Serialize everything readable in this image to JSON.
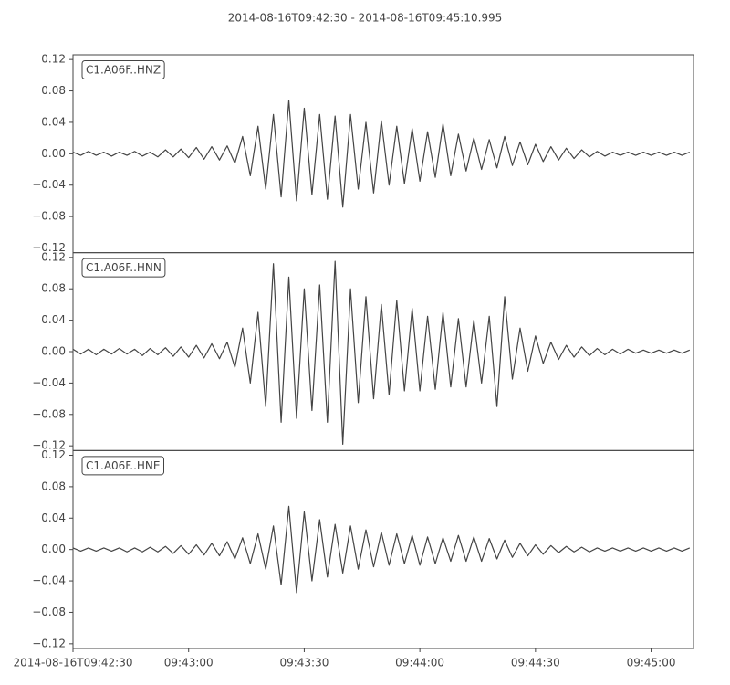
{
  "title": "2014-08-16T09:42:30  -  2014-08-16T09:45:10.995",
  "chart_data": [
    {
      "type": "line",
      "title": "C1.A06F..HNZ",
      "color": "#444444",
      "xlim": [
        0,
        160.995
      ],
      "ylim": [
        -0.126,
        0.126
      ],
      "yticks": [
        {
          "value": 0.12,
          "label": "0.12"
        },
        {
          "value": 0.08,
          "label": "0.08"
        },
        {
          "value": 0.04,
          "label": "0.04"
        },
        {
          "value": 0,
          "label": "0.00"
        },
        {
          "value": -0.04,
          "label": "−0.04"
        },
        {
          "value": -0.08,
          "label": "−0.08"
        },
        {
          "value": -0.12,
          "label": "−0.12"
        }
      ],
      "x": [
        0,
        2,
        4,
        6,
        8,
        10,
        12,
        14,
        16,
        18,
        20,
        22,
        24,
        26,
        28,
        30,
        32,
        34,
        36,
        38,
        40,
        42,
        44,
        46,
        48,
        50,
        52,
        54,
        56,
        58,
        60,
        62,
        64,
        66,
        68,
        70,
        72,
        74,
        76,
        78,
        80,
        82,
        84,
        86,
        88,
        90,
        92,
        94,
        96,
        98,
        100,
        102,
        104,
        106,
        108,
        110,
        112,
        114,
        116,
        118,
        120,
        122,
        124,
        126,
        128,
        130,
        132,
        134,
        136,
        138,
        140,
        142,
        144,
        146,
        148,
        150,
        152,
        154,
        156,
        158,
        160
      ],
      "values": [
        0.002,
        -0.002,
        0.003,
        -0.002,
        0.002,
        -0.003,
        0.002,
        -0.002,
        0.003,
        -0.003,
        0.002,
        -0.004,
        0.005,
        -0.004,
        0.006,
        -0.005,
        0.008,
        -0.007,
        0.009,
        -0.008,
        0.01,
        -0.012,
        0.022,
        -0.028,
        0.035,
        -0.045,
        0.05,
        -0.055,
        0.068,
        -0.06,
        0.058,
        -0.052,
        0.05,
        -0.058,
        0.048,
        -0.068,
        0.05,
        -0.045,
        0.04,
        -0.05,
        0.042,
        -0.04,
        0.035,
        -0.038,
        0.032,
        -0.035,
        0.028,
        -0.03,
        0.038,
        -0.028,
        0.025,
        -0.022,
        0.02,
        -0.02,
        0.018,
        -0.018,
        0.022,
        -0.015,
        0.015,
        -0.014,
        0.012,
        -0.01,
        0.009,
        -0.008,
        0.007,
        -0.006,
        0.005,
        -0.004,
        0.003,
        -0.003,
        0.002,
        -0.002,
        0.002,
        -0.002,
        0.002,
        -0.002,
        0.002,
        -0.002,
        0.002,
        -0.002,
        0.002
      ]
    },
    {
      "type": "line",
      "title": "C1.A06F..HNN",
      "color": "#444444",
      "xlim": [
        0,
        160.995
      ],
      "ylim": [
        -0.126,
        0.126
      ],
      "yticks": [
        {
          "value": 0.12,
          "label": "0.12"
        },
        {
          "value": 0.08,
          "label": "0.08"
        },
        {
          "value": 0.04,
          "label": "0.04"
        },
        {
          "value": 0,
          "label": "0.00"
        },
        {
          "value": -0.04,
          "label": "−0.04"
        },
        {
          "value": -0.08,
          "label": "−0.08"
        },
        {
          "value": -0.12,
          "label": "−0.12"
        }
      ],
      "x": [
        0,
        2,
        4,
        6,
        8,
        10,
        12,
        14,
        16,
        18,
        20,
        22,
        24,
        26,
        28,
        30,
        32,
        34,
        36,
        38,
        40,
        42,
        44,
        46,
        48,
        50,
        52,
        54,
        56,
        58,
        60,
        62,
        64,
        66,
        68,
        70,
        72,
        74,
        76,
        78,
        80,
        82,
        84,
        86,
        88,
        90,
        92,
        94,
        96,
        98,
        100,
        102,
        104,
        106,
        108,
        110,
        112,
        114,
        116,
        118,
        120,
        122,
        124,
        126,
        128,
        130,
        132,
        134,
        136,
        138,
        140,
        142,
        144,
        146,
        148,
        150,
        152,
        154,
        156,
        158,
        160
      ],
      "values": [
        0.003,
        -0.003,
        0.003,
        -0.004,
        0.003,
        -0.003,
        0.004,
        -0.003,
        0.003,
        -0.005,
        0.004,
        -0.004,
        0.005,
        -0.006,
        0.006,
        -0.007,
        0.008,
        -0.008,
        0.01,
        -0.009,
        0.012,
        -0.02,
        0.03,
        -0.04,
        0.05,
        -0.07,
        0.112,
        -0.09,
        0.095,
        -0.085,
        0.08,
        -0.075,
        0.085,
        -0.09,
        0.115,
        -0.118,
        0.08,
        -0.065,
        0.07,
        -0.06,
        0.06,
        -0.055,
        0.065,
        -0.05,
        0.055,
        -0.05,
        0.045,
        -0.048,
        0.05,
        -0.045,
        0.042,
        -0.045,
        0.04,
        -0.04,
        0.045,
        -0.07,
        0.07,
        -0.035,
        0.03,
        -0.025,
        0.02,
        -0.015,
        0.012,
        -0.01,
        0.008,
        -0.007,
        0.006,
        -0.005,
        0.004,
        -0.004,
        0.003,
        -0.003,
        0.003,
        -0.002,
        0.002,
        -0.002,
        0.002,
        -0.002,
        0.002,
        -0.002,
        0.002
      ]
    },
    {
      "type": "line",
      "title": "C1.A06F..HNE",
      "color": "#444444",
      "xlim": [
        0,
        160.995
      ],
      "ylim": [
        -0.126,
        0.126
      ],
      "yticks": [
        {
          "value": 0.12,
          "label": "0.12"
        },
        {
          "value": 0.08,
          "label": "0.08"
        },
        {
          "value": 0.04,
          "label": "0.04"
        },
        {
          "value": 0,
          "label": "0.00"
        },
        {
          "value": -0.04,
          "label": "−0.04"
        },
        {
          "value": -0.08,
          "label": "−0.08"
        },
        {
          "value": -0.12,
          "label": "−0.12"
        }
      ],
      "xticks": [
        {
          "value": 0,
          "label": "2014-08-16T09:42:30"
        },
        {
          "value": 30,
          "label": "09:43:00"
        },
        {
          "value": 60,
          "label": "09:43:30"
        },
        {
          "value": 90,
          "label": "09:44:00"
        },
        {
          "value": 120,
          "label": "09:44:30"
        },
        {
          "value": 150,
          "label": "09:45:00"
        }
      ],
      "x": [
        0,
        2,
        4,
        6,
        8,
        10,
        12,
        14,
        16,
        18,
        20,
        22,
        24,
        26,
        28,
        30,
        32,
        34,
        36,
        38,
        40,
        42,
        44,
        46,
        48,
        50,
        52,
        54,
        56,
        58,
        60,
        62,
        64,
        66,
        68,
        70,
        72,
        74,
        76,
        78,
        80,
        82,
        84,
        86,
        88,
        90,
        92,
        94,
        96,
        98,
        100,
        102,
        104,
        106,
        108,
        110,
        112,
        114,
        116,
        118,
        120,
        122,
        124,
        126,
        128,
        130,
        132,
        134,
        136,
        138,
        140,
        142,
        144,
        146,
        148,
        150,
        152,
        154,
        156,
        158,
        160
      ],
      "values": [
        0.002,
        -0.002,
        0.002,
        -0.002,
        0.002,
        -0.002,
        0.002,
        -0.003,
        0.002,
        -0.003,
        0.003,
        -0.003,
        0.004,
        -0.005,
        0.005,
        -0.006,
        0.006,
        -0.007,
        0.008,
        -0.008,
        0.01,
        -0.012,
        0.015,
        -0.018,
        0.02,
        -0.025,
        0.03,
        -0.045,
        0.055,
        -0.055,
        0.048,
        -0.04,
        0.038,
        -0.035,
        0.032,
        -0.03,
        0.03,
        -0.025,
        0.025,
        -0.022,
        0.022,
        -0.02,
        0.02,
        -0.018,
        0.018,
        -0.02,
        0.016,
        -0.018,
        0.015,
        -0.015,
        0.018,
        -0.015,
        0.016,
        -0.015,
        0.014,
        -0.012,
        0.012,
        -0.01,
        0.008,
        -0.008,
        0.006,
        -0.006,
        0.005,
        -0.004,
        0.004,
        -0.003,
        0.003,
        -0.003,
        0.002,
        -0.002,
        0.002,
        -0.002,
        0.002,
        -0.002,
        0.002,
        -0.002,
        0.002,
        -0.002,
        0.002,
        -0.002,
        0.002
      ]
    }
  ]
}
